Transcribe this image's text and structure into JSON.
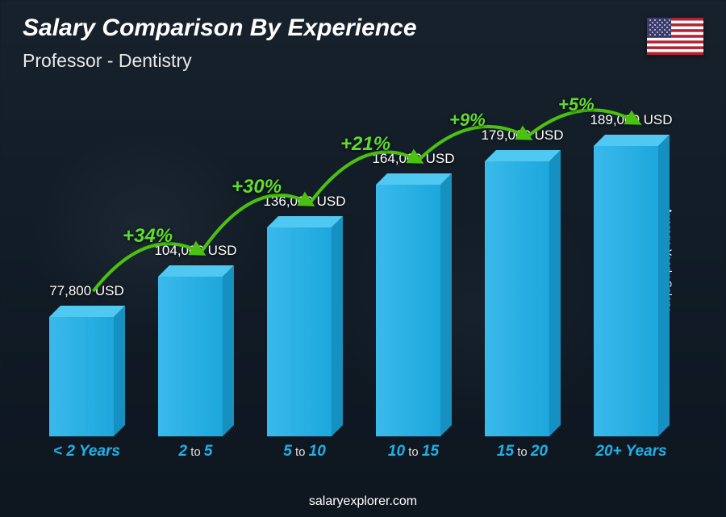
{
  "title": "Salary Comparison By Experience",
  "title_fontsize": 30,
  "subtitle": "Professor - Dentistry",
  "subtitle_fontsize": 23,
  "footer": "salaryexplorer.com",
  "yaxis_label": "Average Yearly Salary",
  "flag": {
    "stripe_red": "#b22234",
    "stripe_white": "#ffffff",
    "canton": "#3c3b6e"
  },
  "chart": {
    "type": "bar",
    "bar_color": "#1eb0e8",
    "bar_color_side": "#1590c0",
    "bar_color_top": "#4fc8f2",
    "value_color": "#ffffff",
    "label_color": "#1eb0e8",
    "label_sep_color": "#e0e0e0",
    "pct_color": "#5fdc2e",
    "arc_color": "#4ac20f",
    "max_value": 189000,
    "bar_area_height": 420,
    "bars": [
      {
        "label_a": "< 2",
        "label_b": "Years",
        "value": 77800,
        "value_text": "77,800 USD"
      },
      {
        "label_a": "2",
        "label_sep": " to ",
        "label_c": "5",
        "value": 104000,
        "value_text": "104,000 USD"
      },
      {
        "label_a": "5",
        "label_sep": " to ",
        "label_c": "10",
        "value": 136000,
        "value_text": "136,000 USD"
      },
      {
        "label_a": "10",
        "label_sep": " to ",
        "label_c": "15",
        "value": 164000,
        "value_text": "164,000 USD"
      },
      {
        "label_a": "15",
        "label_sep": " to ",
        "label_c": "20",
        "value": 179000,
        "value_text": "179,000 USD"
      },
      {
        "label_a": "20+",
        "label_b": "Years",
        "value": 189000,
        "value_text": "189,000 USD"
      }
    ],
    "increases": [
      {
        "text": "+34%",
        "fontsize": 24
      },
      {
        "text": "+30%",
        "fontsize": 24
      },
      {
        "text": "+21%",
        "fontsize": 24
      },
      {
        "text": "+9%",
        "fontsize": 22
      },
      {
        "text": "+5%",
        "fontsize": 22
      }
    ]
  }
}
